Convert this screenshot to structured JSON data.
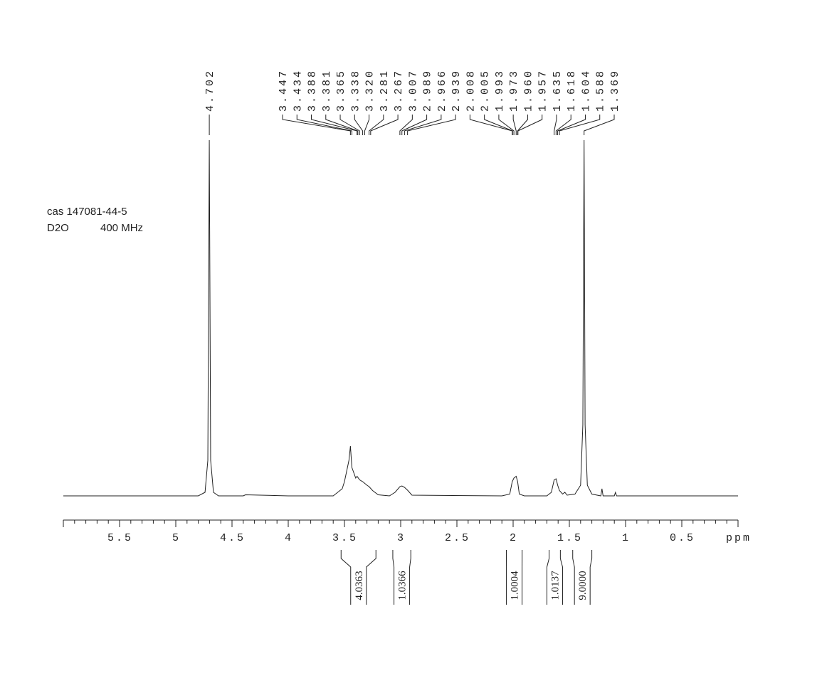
{
  "chart_data": {
    "type": "nmr",
    "annotations": [
      "cas 147081-44-5",
      "D2O",
      "400 MHz"
    ],
    "xlim": [
      6.0,
      0.0
    ],
    "xticks": [
      5.5,
      5.0,
      4.5,
      4.0,
      3.5,
      3.0,
      2.5,
      2.0,
      1.5,
      1.0,
      0.5,
      {
        "value": 0.0,
        "label": "ppm"
      }
    ],
    "minor_xtick_step": 0.1,
    "color": "#000000",
    "spectrum": {
      "x": [
        6.0,
        4.8,
        4.74,
        4.715,
        4.702,
        4.69,
        4.665,
        4.62,
        4.4,
        4.38,
        4.0,
        3.6,
        3.52,
        3.5,
        3.46,
        3.447,
        3.434,
        3.4,
        3.388,
        3.365,
        3.338,
        3.3,
        3.281,
        3.25,
        3.2,
        3.1,
        3.05,
        3.007,
        2.989,
        2.966,
        2.939,
        2.9,
        2.1,
        2.03,
        2.008,
        1.993,
        1.973,
        1.96,
        1.945,
        1.9,
        1.7,
        1.66,
        1.635,
        1.618,
        1.604,
        1.588,
        1.56,
        1.54,
        1.52,
        1.45,
        1.4,
        1.38,
        1.369,
        1.36,
        1.34,
        1.3,
        1.22,
        1.21,
        1.2,
        1.1,
        1.09,
        1.08,
        0.0
      ],
      "y": [
        0,
        0,
        1,
        10,
        100,
        10,
        1,
        0,
        0,
        0.3,
        0,
        0,
        2,
        4,
        10,
        14,
        8,
        5,
        5.5,
        4.5,
        4,
        3,
        2.6,
        1.5,
        0.3,
        0,
        1,
        2.6,
        2.8,
        2.4,
        1.6,
        0.2,
        0,
        0.5,
        4,
        5,
        5.5,
        4,
        0.5,
        0,
        0,
        1,
        4.5,
        4.8,
        3,
        1.5,
        0.5,
        1,
        0.2,
        0.5,
        3,
        20,
        100,
        20,
        3,
        0.5,
        0,
        2,
        0,
        0,
        1,
        0,
        0
      ]
    },
    "peaks": {
      "values": [
        4.702,
        3.447,
        3.434,
        3.388,
        3.381,
        3.365,
        3.338,
        3.32,
        3.281,
        3.267,
        3.007,
        2.989,
        2.966,
        2.939,
        2.008,
        2.005,
        1.993,
        1.973,
        1.96,
        1.957,
        1.635,
        1.618,
        1.604,
        1.588,
        1.369
      ],
      "value_labels": [
        "4.702",
        "3.447",
        "3.434",
        "3.388",
        "3.381",
        "3.365",
        "3.338",
        "3.320",
        "3.281",
        "3.267",
        "3.007",
        "2.989",
        "2.966",
        "2.939",
        "2.008",
        "2.005",
        "1.993",
        "1.973",
        "1.960",
        "1.957",
        "1.635",
        "1.618",
        "1.604",
        "1.588",
        "1.369"
      ]
    },
    "integrals": {
      "ranges": [
        [
          3.53,
          3.22
        ],
        [
          3.07,
          2.91
        ],
        [
          2.06,
          1.92
        ],
        [
          1.68,
          1.58
        ],
        [
          1.47,
          1.3
        ]
      ],
      "values": [
        4.0363,
        1.0366,
        1.0004,
        1.0137,
        9.0
      ],
      "value_labels": [
        "4.0363",
        "1.0366",
        "1.0004",
        "1.0137",
        "9.0000"
      ]
    }
  }
}
